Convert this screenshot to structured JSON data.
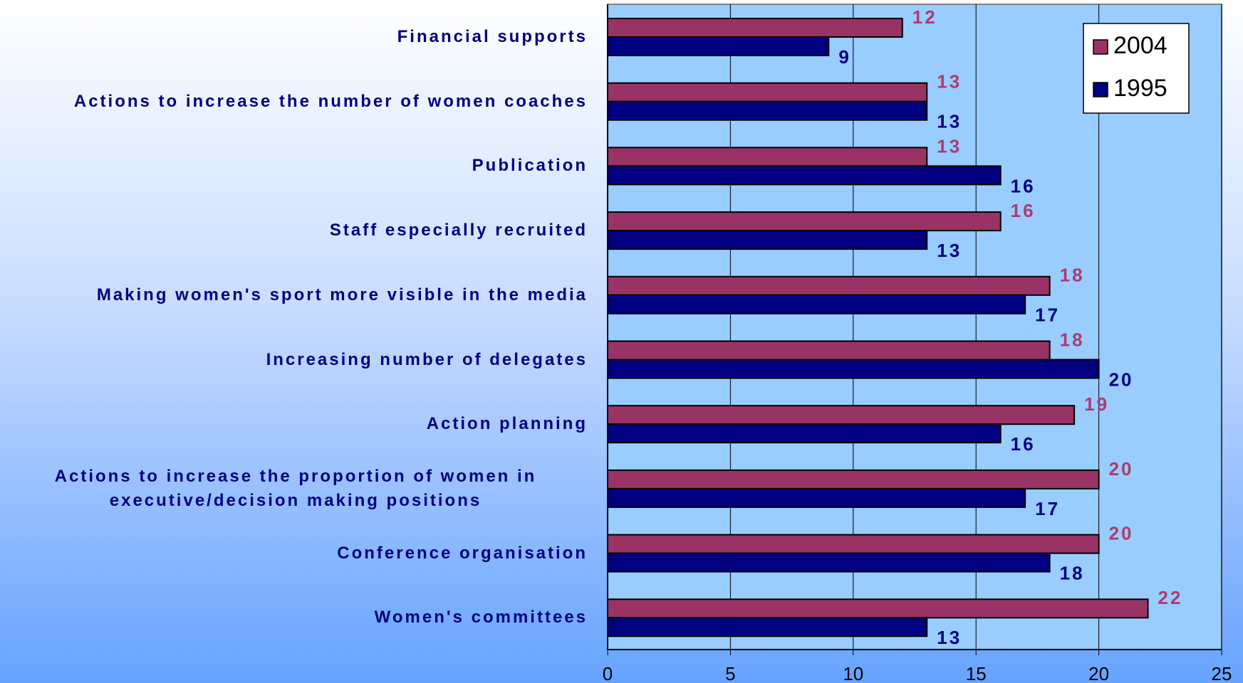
{
  "chart_data": {
    "type": "hbar",
    "categories": [
      "Financial supports",
      "Actions to increase the number of women coaches",
      "Publication",
      "Staff especially recruited",
      "Making women's sport more visible in the media",
      "Increasing number of delegates",
      "Action planning",
      "Actions to increase the proportion of women in executive/decision making positions",
      "Conference organisation",
      "Women's committees"
    ],
    "series": [
      {
        "name": "2004",
        "color": "#993366",
        "values": [
          12,
          13,
          13,
          16,
          18,
          18,
          19,
          20,
          20,
          22
        ]
      },
      {
        "name": "1995",
        "color": "#000080",
        "values": [
          9,
          13,
          16,
          13,
          17,
          20,
          16,
          17,
          18,
          13
        ]
      }
    ],
    "xlim": [
      0,
      25
    ],
    "xticks": [
      0,
      5,
      10,
      15,
      20,
      25
    ],
    "grid": true,
    "legend": "top-right"
  }
}
